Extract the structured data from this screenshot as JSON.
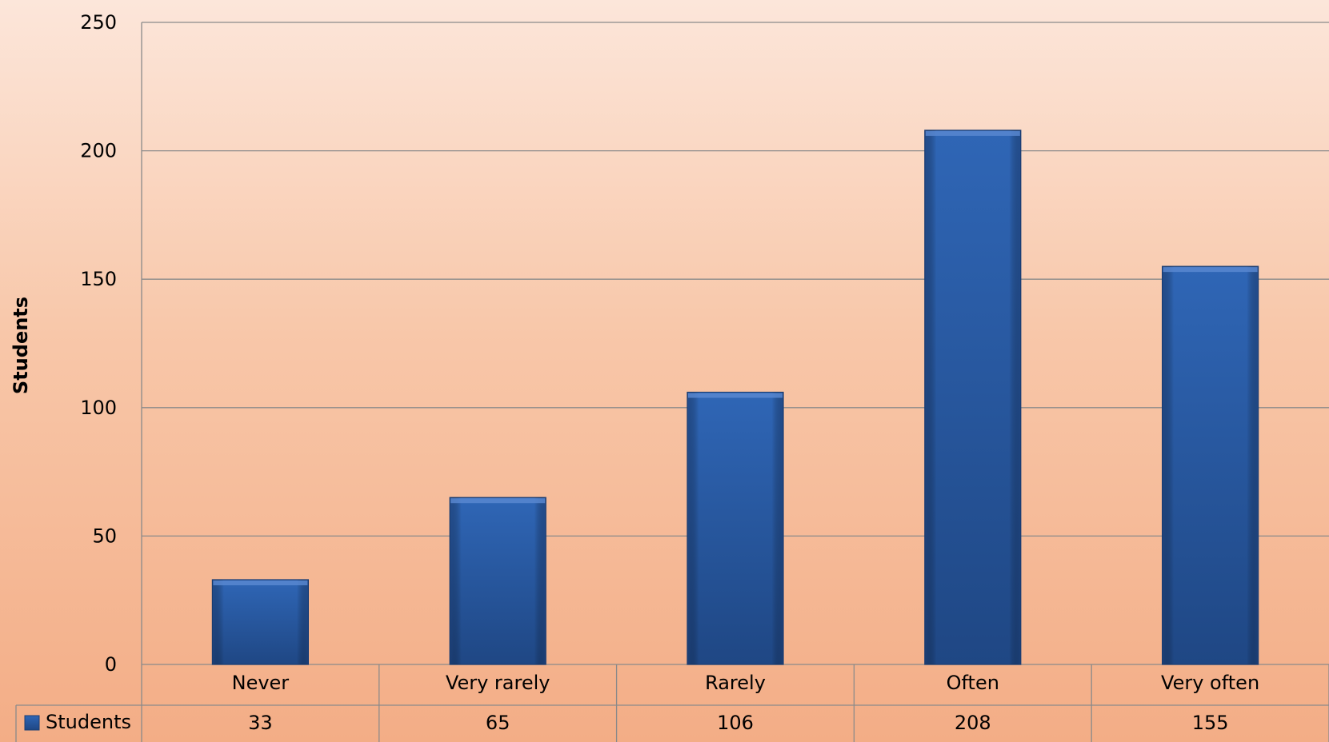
{
  "chart_data": {
    "type": "bar",
    "categories": [
      "Never",
      "Very rarely",
      "Rarely",
      "Often",
      "Very often"
    ],
    "series": [
      {
        "name": "Students",
        "values": [
          33,
          65,
          106,
          208,
          155
        ],
        "color": "#2e62b0"
      }
    ],
    "ylabel": "Students",
    "ylim": [
      0,
      250
    ],
    "yticks": [
      0,
      50,
      100,
      150,
      200,
      250
    ],
    "grid": true,
    "legend": "data-table-left"
  }
}
